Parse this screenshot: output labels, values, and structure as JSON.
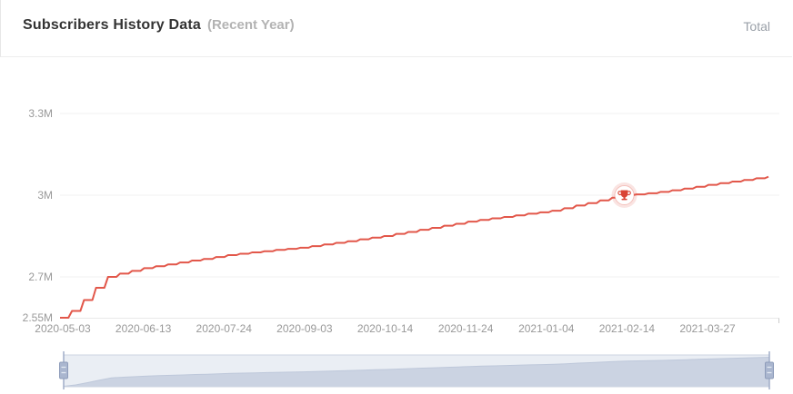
{
  "header": {
    "title": "Subscribers History Data",
    "subtitle": "(Recent Year)",
    "legend_total": "Total"
  },
  "colors": {
    "line": "#e2574a",
    "marker_glow": "rgba(226,87,74,0.16)",
    "marker_ring": "rgba(226,87,74,0.30)",
    "trophy": "#d94436",
    "gridline": "#f0f0f0",
    "axis_line": "#e8e8e8",
    "axis_text": "#999999",
    "slider_fill": "rgba(180,193,216,0.28)",
    "slider_border": "#cdd4e2",
    "slider_shadow_fill": "#d4dae7",
    "slider_shadow_line": "#c3cbdc",
    "handle_line": "#a0adc8",
    "handle_fill": "#aab6cf",
    "handle_stroke": "#8e9cba",
    "handle_grip_lines": "#e3e9f3"
  },
  "chart_data": {
    "type": "line",
    "title": "Subscribers History Data (Recent Year)",
    "series_name": "Total",
    "unit": "M subscribers",
    "x_start_date": "2020-05-03",
    "x_step_days": 6,
    "x_axis_labels": [
      "2020-05-03",
      "2020-06-13",
      "2020-07-24",
      "2020-09-03",
      "2020-10-14",
      "2020-11-24",
      "2021-01-04",
      "2021-02-14",
      "2021-03-27"
    ],
    "y_axis_labels": [
      "3.3M",
      "3M",
      "2.7M",
      "2.55M"
    ],
    "y_gridline_values": [
      3.3,
      3.0,
      2.7
    ],
    "ylim": [
      2.55,
      3.3
    ],
    "grid": true,
    "legend_position": "top-right",
    "values": [
      2.55,
      2.575,
      2.615,
      2.66,
      2.7,
      2.712,
      2.722,
      2.732,
      2.739,
      2.746,
      2.753,
      2.76,
      2.766,
      2.773,
      2.78,
      2.785,
      2.79,
      2.794,
      2.799,
      2.803,
      2.807,
      2.813,
      2.819,
      2.825,
      2.831,
      2.838,
      2.844,
      2.85,
      2.858,
      2.865,
      2.873,
      2.88,
      2.888,
      2.895,
      2.903,
      2.909,
      2.915,
      2.92,
      2.926,
      2.932,
      2.937,
      2.943,
      2.952,
      2.962,
      2.971,
      2.981,
      2.991,
      3.0,
      3.003,
      3.007,
      3.012,
      3.018,
      3.024,
      3.031,
      3.038,
      3.044,
      3.05,
      3.056,
      3.062,
      3.068
    ],
    "marker": {
      "type": "trophy-milestone",
      "index": 47,
      "value": 3.0,
      "label": "3M"
    }
  }
}
